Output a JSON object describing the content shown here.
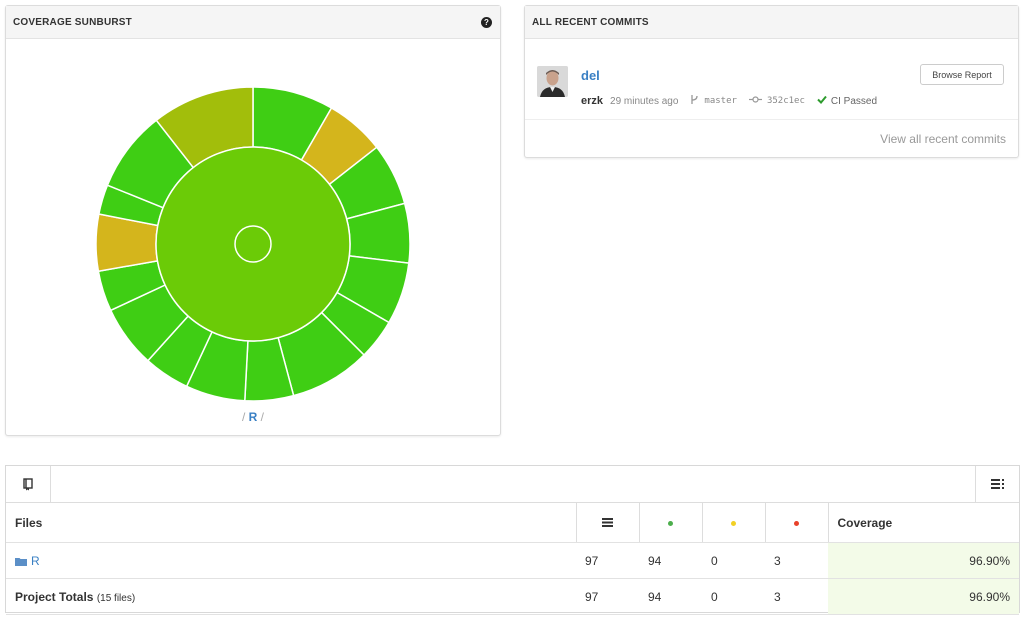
{
  "sunburst_card": {
    "title": "COVERAGE SUNBURST",
    "help_icon": "question-circle-icon",
    "breadcrumb": {
      "sep_left": "/",
      "current": "R",
      "sep_right": "/"
    },
    "colors": {
      "green": "#3fce14",
      "inner_green": "#6bcb07",
      "yellow": "#d4b51c",
      "olive": "#a2be0b"
    }
  },
  "commits_card": {
    "title": "ALL RECENT COMMITS",
    "commit": {
      "message": "del",
      "author": "erzk",
      "time": "29 minutes ago",
      "branch": "master",
      "sha": "352c1ec",
      "ci_status": "CI Passed"
    },
    "browse_button": "Browse Report",
    "view_all": "View all recent commits"
  },
  "files_table": {
    "headers": {
      "files": "Files",
      "coverage": "Coverage"
    },
    "header_icons": [
      "lines-icon",
      "hit-dot-icon",
      "partial-dot-icon",
      "miss-dot-icon"
    ],
    "dot_colors": {
      "hit": "#4cae4c",
      "partial": "#f2d024",
      "miss": "#e8412a"
    },
    "rows": [
      {
        "name": "R",
        "lines": "97",
        "hits": "94",
        "partials": "0",
        "misses": "3",
        "coverage": "96.90%"
      }
    ],
    "totals": {
      "label": "Project Totals",
      "sub": "(15 files)",
      "lines": "97",
      "hits": "94",
      "partials": "0",
      "misses": "3",
      "coverage": "96.90%"
    }
  }
}
